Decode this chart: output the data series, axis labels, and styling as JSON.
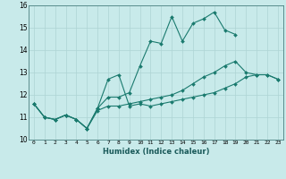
{
  "title": "",
  "xlabel": "Humidex (Indice chaleur)",
  "ylabel": "",
  "background_color": "#c8eaea",
  "grid_color": "#aed4d4",
  "line_color": "#1a7a6e",
  "xlim": [
    -0.5,
    23.5
  ],
  "ylim": [
    10,
    16
  ],
  "xticks": [
    0,
    1,
    2,
    3,
    4,
    5,
    6,
    7,
    8,
    9,
    10,
    11,
    12,
    13,
    14,
    15,
    16,
    17,
    18,
    19,
    20,
    21,
    22,
    23
  ],
  "yticks": [
    10,
    11,
    12,
    13,
    14,
    15,
    16
  ],
  "series": [
    [
      11.6,
      11.0,
      10.9,
      11.1,
      10.9,
      10.5,
      11.4,
      12.7,
      12.9,
      11.5,
      11.6,
      11.5,
      11.6,
      11.7,
      11.8,
      11.9,
      12.0,
      12.1,
      12.3,
      12.5,
      12.8,
      12.9,
      12.9,
      12.7
    ],
    [
      11.6,
      11.0,
      10.9,
      11.1,
      10.9,
      10.5,
      11.4,
      11.9,
      11.9,
      12.1,
      13.3,
      14.4,
      14.3,
      15.5,
      14.4,
      15.2,
      15.4,
      15.7,
      14.9,
      14.7,
      null,
      null,
      null,
      null
    ],
    [
      11.6,
      11.0,
      10.9,
      11.1,
      10.9,
      10.5,
      11.3,
      11.5,
      11.5,
      11.6,
      11.7,
      11.8,
      11.9,
      12.0,
      12.2,
      12.5,
      12.8,
      13.0,
      13.3,
      13.5,
      13.0,
      12.9,
      12.9,
      12.7
    ]
  ]
}
